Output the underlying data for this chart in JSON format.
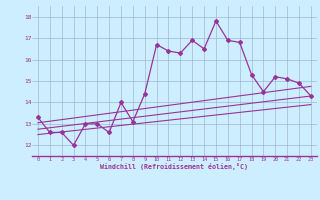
{
  "x_values": [
    0,
    1,
    2,
    3,
    4,
    5,
    6,
    7,
    8,
    9,
    10,
    11,
    12,
    13,
    14,
    15,
    16,
    17,
    18,
    19,
    20,
    21,
    22,
    23
  ],
  "main_line": [
    13.3,
    12.6,
    12.6,
    12.0,
    13.0,
    13.0,
    12.6,
    14.0,
    13.1,
    14.4,
    16.7,
    16.4,
    16.3,
    16.9,
    16.5,
    17.8,
    16.9,
    16.8,
    15.3,
    14.5,
    15.2,
    15.1,
    14.9,
    14.3
  ],
  "trend_lines": [
    [
      12.5,
      13.9
    ],
    [
      12.75,
      14.3
    ],
    [
      13.05,
      14.75
    ]
  ],
  "background_color": "#cceeff",
  "line_color": "#993399",
  "grid_color": "#99aacc",
  "xlabel": "Windchill (Refroidissement éolien,°C)",
  "ylim": [
    11.5,
    18.5
  ],
  "xlim": [
    -0.5,
    23.5
  ],
  "yticks": [
    12,
    13,
    14,
    15,
    16,
    17,
    18
  ],
  "xticks": [
    0,
    1,
    2,
    3,
    4,
    5,
    6,
    7,
    8,
    9,
    10,
    11,
    12,
    13,
    14,
    15,
    16,
    17,
    18,
    19,
    20,
    21,
    22,
    23
  ]
}
